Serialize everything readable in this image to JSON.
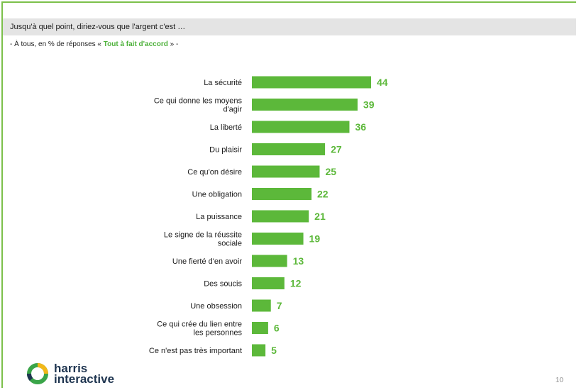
{
  "header": {
    "question": "Jusqu'à quel point, diriez-vous que l'argent c'est …",
    "subtitle_prefix": "- À tous, en % de réponses « ",
    "subtitle_highlight": "Tout à fait d'accord",
    "subtitle_suffix": " » -"
  },
  "brand": {
    "line1": "harris",
    "line2": "interactive",
    "logo_colors": [
      "#f2b81a",
      "#3aa549",
      "#1f3550"
    ]
  },
  "page_number": "10",
  "colors": {
    "bar": "#5cb83a",
    "frame": "#7cc04b",
    "header_bg": "#e4e4e4"
  },
  "chart_data": {
    "type": "bar",
    "orientation": "horizontal",
    "categories": [
      "La sécurité",
      "Ce qui donne les moyens d'agir",
      "La liberté",
      "Du plaisir",
      "Ce qu'on désire",
      "Une obligation",
      "La puissance",
      "Le signe de la réussite sociale",
      "Une fierté d'en avoir",
      "Des soucis",
      "Une obsession",
      "Ce qui crée du lien entre les personnes",
      "Ce n'est pas très important"
    ],
    "category_lines": [
      [
        "La sécurité"
      ],
      [
        "Ce qui donne les moyens",
        "d'agir"
      ],
      [
        "La liberté"
      ],
      [
        "Du plaisir"
      ],
      [
        "Ce qu'on désire"
      ],
      [
        "Une obligation"
      ],
      [
        "La puissance"
      ],
      [
        "Le signe de la réussite",
        "sociale"
      ],
      [
        "Une fierté d'en avoir"
      ],
      [
        "Des soucis"
      ],
      [
        "Une obsession"
      ],
      [
        "Ce qui crée du lien entre",
        "les personnes"
      ],
      [
        "Ce n'est pas très important"
      ]
    ],
    "values": [
      44,
      39,
      36,
      27,
      25,
      22,
      21,
      19,
      13,
      12,
      7,
      6,
      5
    ],
    "xlim": [
      0,
      44
    ],
    "grid": false,
    "legend": "none"
  }
}
